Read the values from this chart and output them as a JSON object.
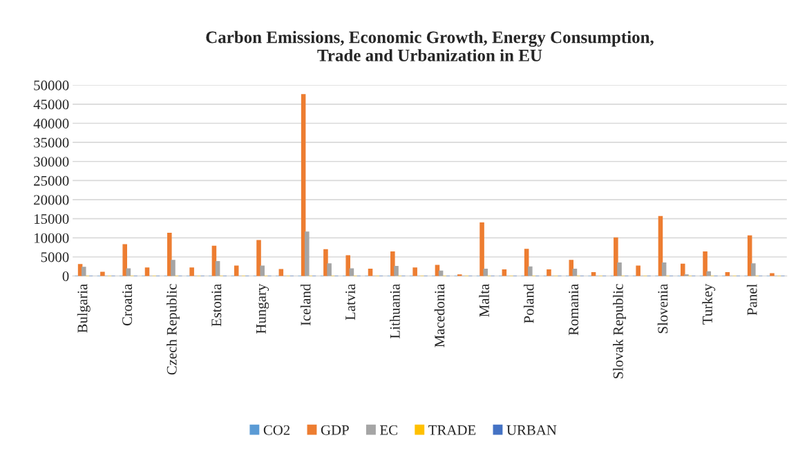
{
  "chart_data": {
    "type": "bar",
    "title": "Carbon Emissions, Economic Growth, Energy Consumption,\nTrade and Urbanization in EU",
    "categories": [
      "Bulgaria",
      null,
      "Croatia",
      null,
      "Czech Republic",
      null,
      "Estonia",
      null,
      "Hungary",
      null,
      "Iceland",
      null,
      "Latvia",
      null,
      "Lithuania",
      null,
      "Macedonia",
      null,
      "Malta",
      null,
      "Poland",
      null,
      "Romania",
      null,
      "Slovak Republic",
      null,
      "Slovenia",
      null,
      "Turkey",
      null,
      "Panel",
      null
    ],
    "series": [
      {
        "name": "CO2",
        "color": "#5b9bd5",
        "values": [
          0,
          0,
          0,
          0,
          0,
          0,
          0,
          0,
          0,
          0,
          0,
          0,
          0,
          0,
          0,
          0,
          0,
          0,
          0,
          0,
          0,
          0,
          0,
          0,
          0,
          0,
          0,
          0,
          0,
          0,
          0,
          0
        ]
      },
      {
        "name": "GDP",
        "color": "#ed7d31",
        "values": [
          3000,
          1000,
          8200,
          2100,
          11200,
          2100,
          7800,
          2600,
          9300,
          1700,
          47500,
          6900,
          5300,
          1800,
          6300,
          2100,
          2800,
          300,
          13900,
          1600,
          7000,
          1600,
          4100,
          900,
          10000,
          2600,
          15600,
          3100,
          6300,
          900,
          10500,
          600
        ]
      },
      {
        "name": "EC",
        "color": "#a5a5a5",
        "values": [
          2300,
          0,
          1900,
          0,
          4100,
          0,
          3800,
          0,
          2600,
          0,
          11500,
          3200,
          1900,
          0,
          2500,
          0,
          1300,
          0,
          1800,
          0,
          2400,
          0,
          1800,
          0,
          3400,
          0,
          3400,
          300,
          1100,
          0,
          3200,
          0
        ]
      },
      {
        "name": "TRADE",
        "color": "#ffc000",
        "values": [
          0,
          0,
          0,
          0,
          0,
          0,
          0,
          0,
          0,
          0,
          0,
          0,
          0,
          0,
          0,
          0,
          0,
          0,
          0,
          0,
          0,
          0,
          0,
          0,
          0,
          0,
          0,
          0,
          0,
          0,
          0,
          0
        ]
      },
      {
        "name": "URBAN",
        "color": "#4472c4",
        "values": [
          0,
          0,
          0,
          0,
          0,
          0,
          0,
          0,
          0,
          0,
          0,
          0,
          0,
          0,
          0,
          0,
          0,
          0,
          0,
          0,
          0,
          0,
          0,
          0,
          0,
          0,
          0,
          0,
          0,
          0,
          0,
          0
        ]
      }
    ],
    "ylim": [
      0,
      50000
    ],
    "yticks": [
      0,
      5000,
      10000,
      15000,
      20000,
      25000,
      30000,
      35000,
      40000,
      45000,
      50000
    ],
    "grid": "y",
    "legend": "bottom"
  }
}
